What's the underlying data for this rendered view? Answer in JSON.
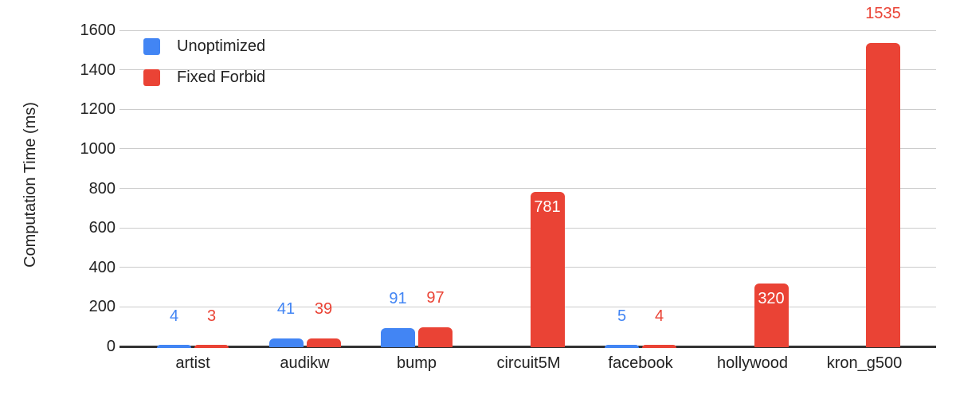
{
  "chart_data": {
    "type": "bar",
    "title": "",
    "xlabel": "",
    "ylabel": "Computation Time (ms)",
    "ylim": [
      0,
      1600
    ],
    "ytick_step": 200,
    "ytick_labels": [
      "0",
      "200",
      "400",
      "600",
      "800",
      "1000",
      "1200",
      "1400",
      "1600"
    ],
    "grid": true,
    "legend_position": "top-left-inside",
    "categories": [
      "artist",
      "audikw",
      "bump",
      "circuit5M",
      "facebook",
      "hollywood",
      "kron_g500"
    ],
    "series": [
      {
        "name": "Unoptimized",
        "color": "#4285F4",
        "values": [
          4,
          41,
          91,
          null,
          5,
          null,
          null
        ],
        "label_placement": [
          "above",
          "above",
          "above",
          null,
          "above",
          null,
          null
        ]
      },
      {
        "name": "Fixed Forbid",
        "color": "#EA4335",
        "values": [
          3,
          39,
          97,
          781,
          4,
          320,
          1535
        ],
        "label_placement": [
          "above",
          "above",
          "above",
          "inside",
          "above",
          "inside",
          "above"
        ]
      }
    ],
    "annotation_inside_color": "#FFFFFF",
    "style": {
      "grid_color": "#CCCCCC",
      "baseline_color": "#333333",
      "text_color": "#222222",
      "background": "#FFFFFF"
    }
  }
}
